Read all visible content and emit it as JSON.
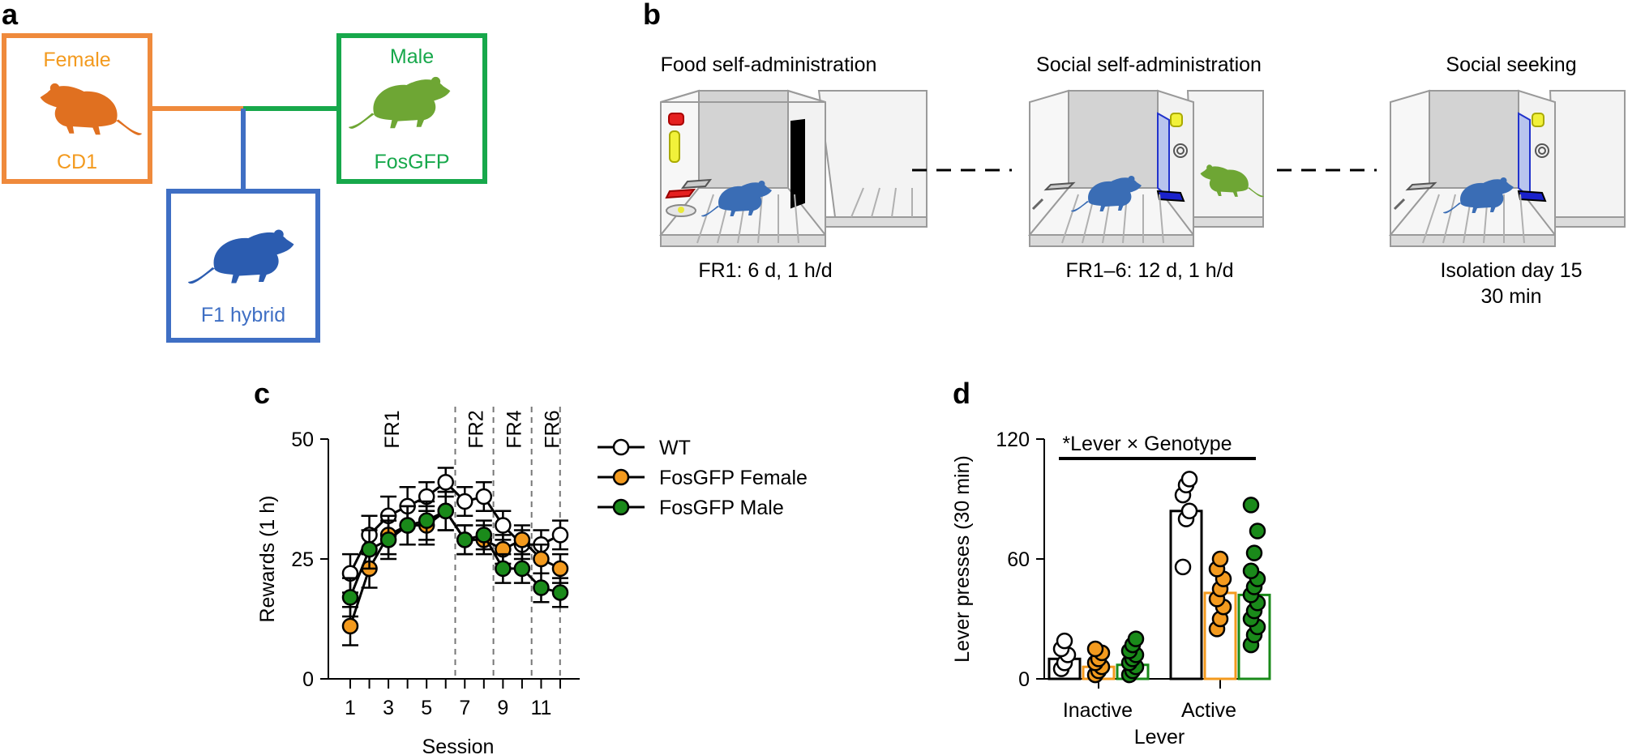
{
  "panels": {
    "a": "a",
    "b": "b",
    "c": "c",
    "d": "d"
  },
  "colors": {
    "female": "#ef8a3c",
    "male": "#17a84b",
    "hybrid": "#3f6fc4",
    "wt": "#ffffff",
    "fos_female": "#f39a1e",
    "fos_male": "#1a8a1a",
    "mouse_blue": "#3a6db5"
  },
  "panel_a": {
    "female_label": "Female",
    "female_strain": "CD1",
    "male_label": "Male",
    "male_strain": "FosGFP",
    "hybrid_label": "F1 hybrid"
  },
  "panel_b": {
    "stages": [
      {
        "title": "Food self-administration",
        "detail": "FR1: 6 d, 1 h/d"
      },
      {
        "title": "Social self-administration",
        "detail": "FR1–6: 12 d, 1 h/d"
      },
      {
        "title": "Social seeking",
        "detail": "Isolation day 15",
        "detail2": "30 min"
      }
    ]
  },
  "chart_data": [
    {
      "type": "line",
      "title": "",
      "xlabel": "Session",
      "ylabel": "Rewards (1 h)",
      "ylim": [
        0,
        50
      ],
      "x": [
        1,
        2,
        3,
        4,
        5,
        6,
        7,
        8,
        9,
        10,
        11,
        12
      ],
      "xticks": [
        "1",
        "3",
        "5",
        "7",
        "9",
        "11"
      ],
      "yticks": [
        "0",
        "25",
        "50"
      ],
      "phases": [
        "FR1",
        "FR2",
        "FR4",
        "FR6"
      ],
      "series": [
        {
          "name": "WT",
          "values": [
            22,
            30,
            34,
            36,
            38,
            41,
            37,
            38,
            32,
            28,
            28,
            30
          ],
          "err": [
            4,
            4,
            4,
            4,
            3,
            3,
            3,
            3,
            3,
            3,
            3,
            3
          ]
        },
        {
          "name": "FosGFP Female",
          "values": [
            11,
            23,
            30,
            32,
            32,
            35,
            29,
            29,
            27,
            29,
            25,
            23
          ],
          "err": [
            4,
            4,
            4,
            4,
            4,
            4,
            3,
            3,
            3,
            3,
            3,
            3
          ]
        },
        {
          "name": "FosGFP Male",
          "values": [
            17,
            27,
            29,
            32,
            33,
            35,
            29,
            30,
            23,
            23,
            19,
            18
          ],
          "err": [
            4,
            4,
            4,
            4,
            4,
            4,
            3,
            3,
            3,
            3,
            3,
            3
          ]
        }
      ]
    },
    {
      "type": "bar",
      "title": "*Lever × Genotype",
      "xlabel": "Lever",
      "ylabel": "Lever presses (30 min)",
      "ylim": [
        0,
        120
      ],
      "yticks": [
        "0",
        "60",
        "120"
      ],
      "categories": [
        "Inactive",
        "Active"
      ],
      "series": [
        {
          "name": "WT",
          "values": [
            10,
            84
          ],
          "points": [
            [
              5,
              8,
              12,
              15,
              19
            ],
            [
              56,
              80,
              84,
              92,
              97,
              100
            ]
          ]
        },
        {
          "name": "FosGFP Female",
          "values": [
            6,
            43
          ],
          "points": [
            [
              2,
              4,
              6,
              8,
              10,
              13,
              15
            ],
            [
              25,
              30,
              36,
              40,
              45,
              50,
              55,
              60
            ]
          ]
        },
        {
          "name": "FosGFP Male",
          "values": [
            7,
            42
          ],
          "points": [
            [
              2,
              4,
              6,
              8,
              10,
              12,
              14,
              17,
              20
            ],
            [
              17,
              22,
              26,
              30,
              34,
              38,
              42,
              46,
              50,
              54,
              63,
              74,
              87
            ]
          ]
        }
      ]
    }
  ]
}
